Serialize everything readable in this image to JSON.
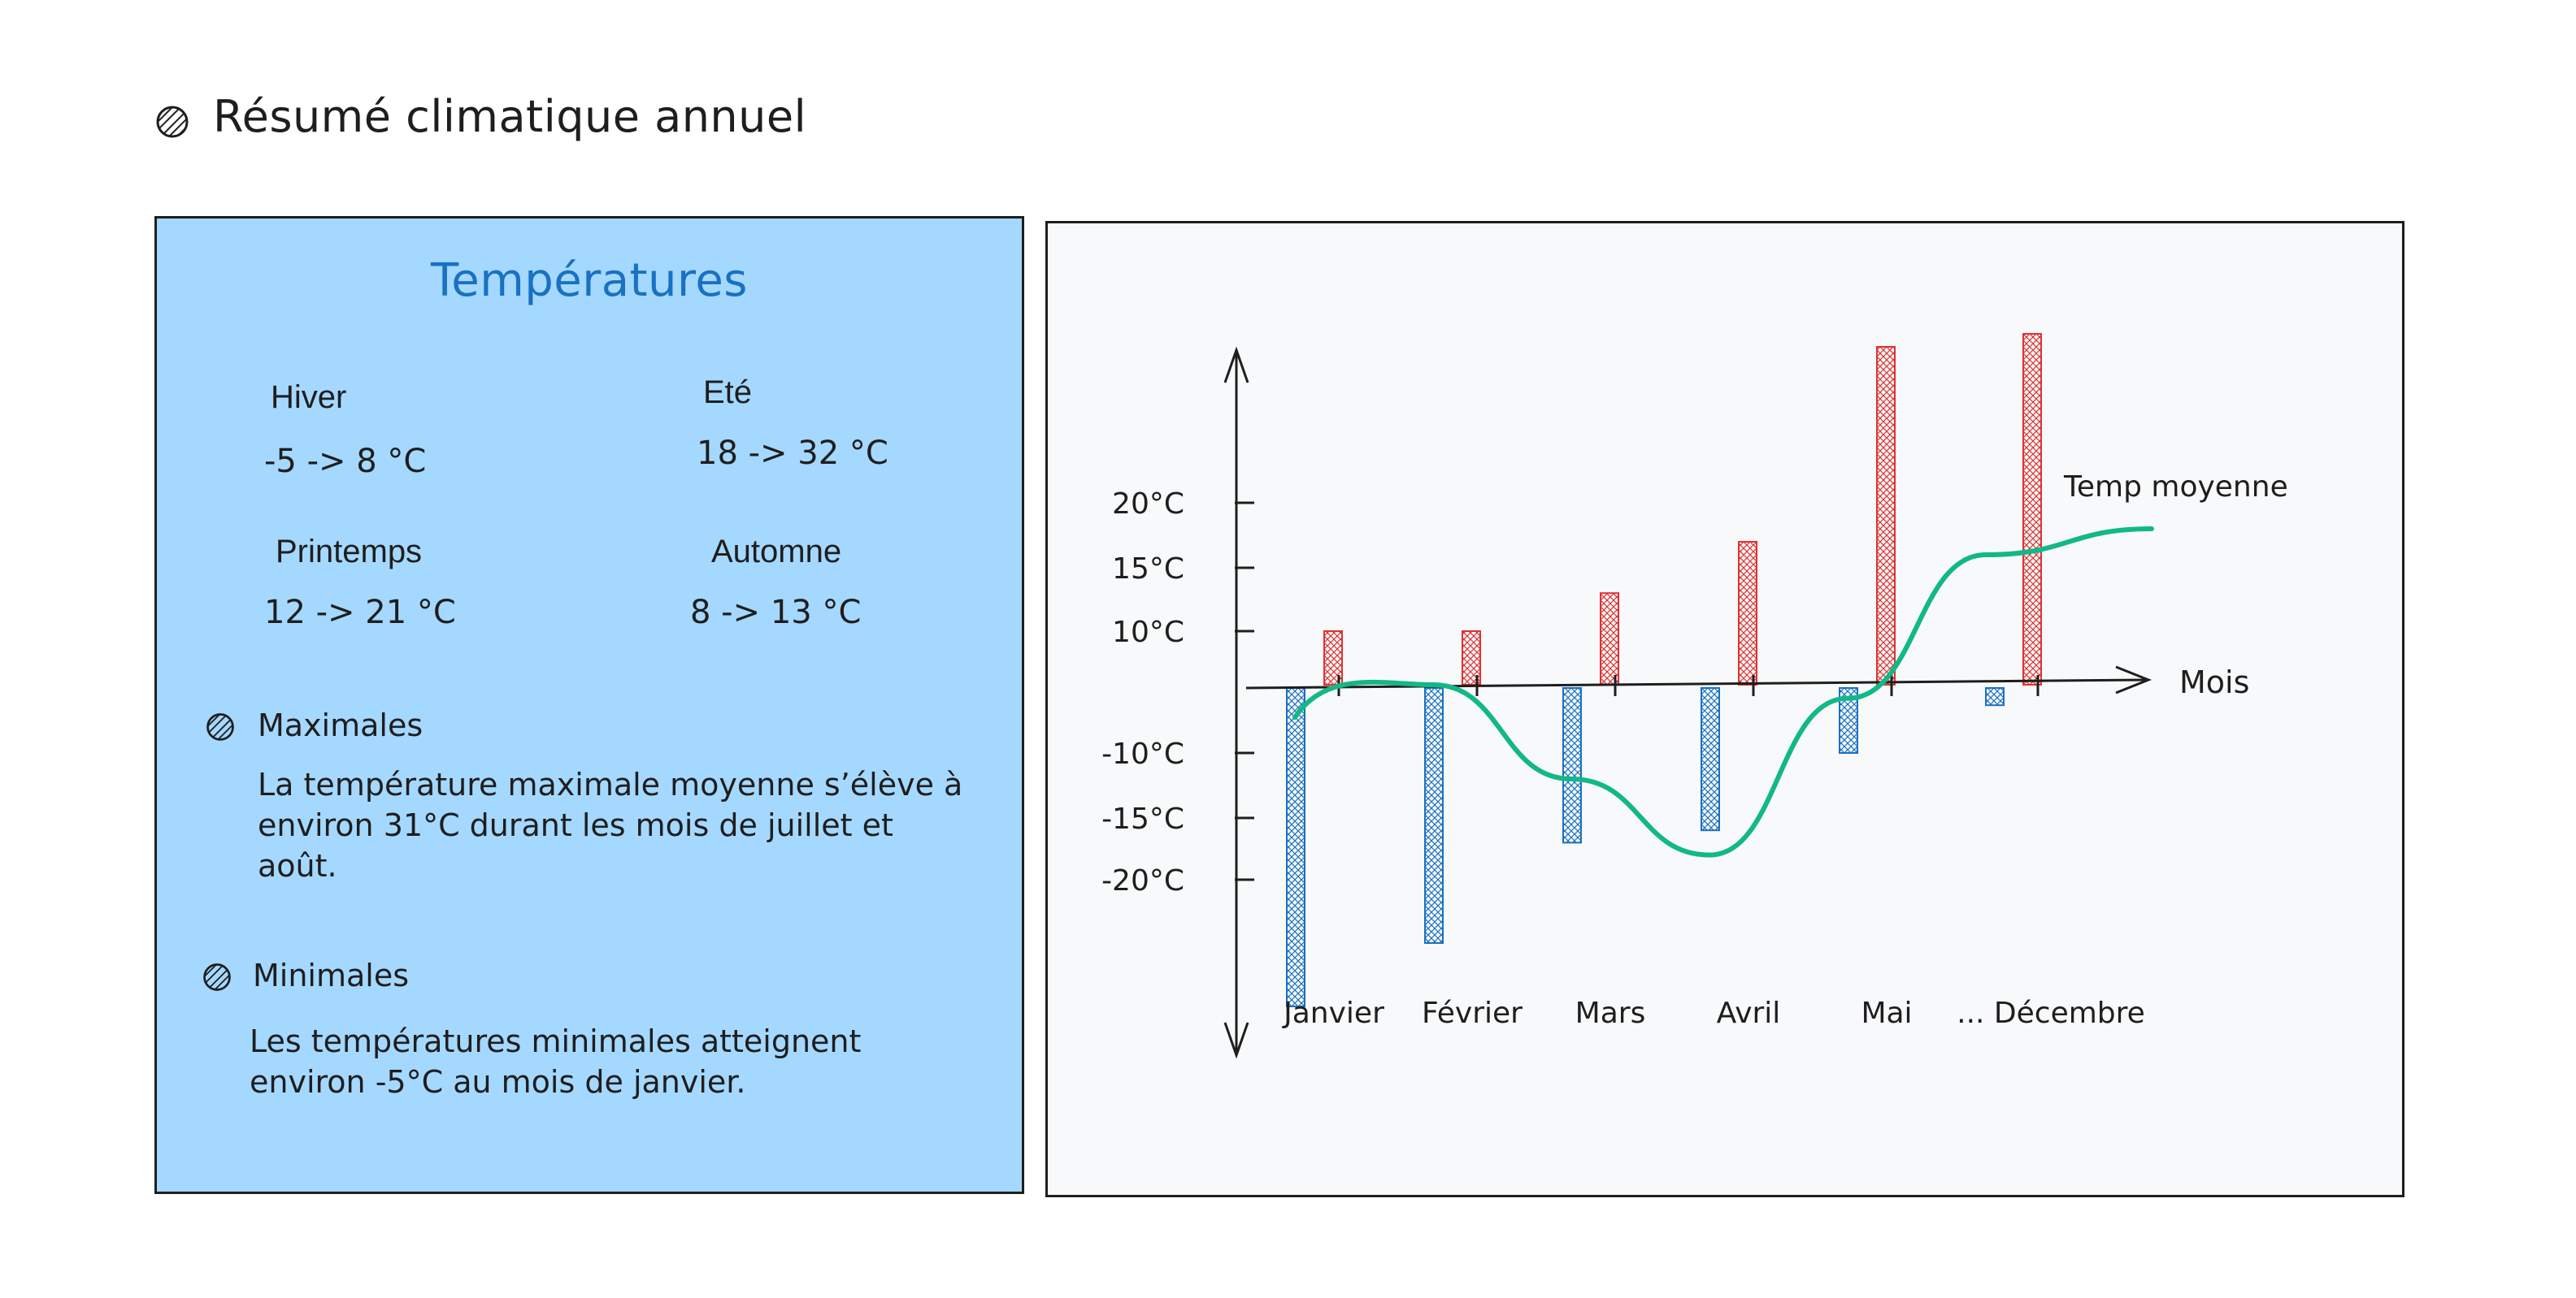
{
  "title": "Résumé climatique annuel",
  "panel": {
    "heading": "Températures",
    "seasons": [
      {
        "name": "Hiver",
        "range": "-5 -> 8 °C"
      },
      {
        "name": "Eté",
        "range": "18 -> 32 °C"
      },
      {
        "name": "Printemps",
        "range": "12 -> 21 °C"
      },
      {
        "name": "Automne",
        "range": "8 -> 13 °C"
      }
    ],
    "notes": [
      {
        "heading": "Maximales",
        "lines": [
          "La température maximale moyenne s’élève à",
          "environ 31°C durant les mois de juillet et",
          "août."
        ]
      },
      {
        "heading": "Minimales",
        "lines": [
          "Les températures minimales atteignent",
          "environ -5°C au mois de janvier."
        ]
      }
    ]
  },
  "colors": {
    "panel_bg": "#a5d8ff",
    "heading": "#1971c2",
    "bar_max": "#e03131",
    "bar_min": "#1971c2",
    "line": "#12b886"
  },
  "chart_data": {
    "type": "bar",
    "categories": [
      "Janvier",
      "Février",
      "Mars",
      "Avril",
      "Mai",
      "... Décembre"
    ],
    "series": [
      {
        "values": [
          10,
          10,
          13,
          17,
          32,
          33
        ]
      },
      {
        "values": [
          -30,
          -25,
          -17,
          -16,
          -10,
          -3
        ]
      }
    ],
    "line_series": {
      "name": "Temp moyenne",
      "points": [
        [
          0.2,
          3
        ],
        [
          1.2,
          0
        ],
        [
          2.2,
          -12
        ],
        [
          3.2,
          -18
        ],
        [
          4.2,
          -2
        ],
        [
          5.2,
          16
        ],
        [
          6.4,
          18
        ]
      ]
    },
    "y_tick_labels": [
      "20°C",
      "15°C",
      "10°C",
      "-10°C",
      "-15°C",
      "-20°C"
    ],
    "y_tick_values": [
      20,
      15,
      10,
      -10,
      -15,
      -20
    ],
    "xlabel": "Mois",
    "ylabel": "",
    "ylim": [
      -35,
      40
    ],
    "icons": [
      "hatched-circle-icon"
    ]
  }
}
